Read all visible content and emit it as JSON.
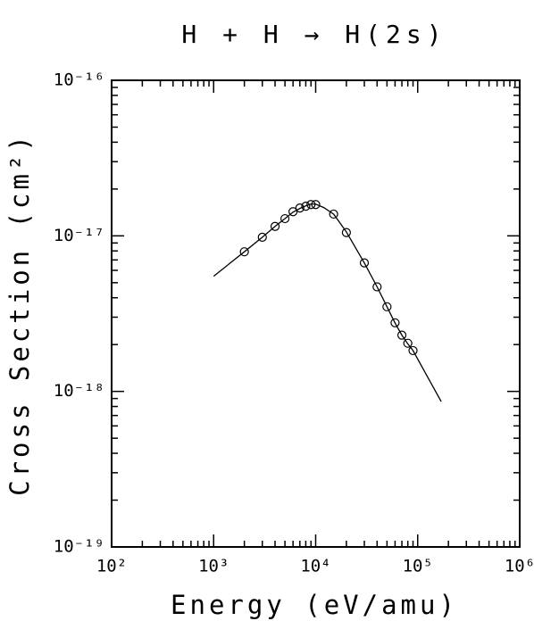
{
  "chart_data": {
    "type": "line",
    "title": "H + H → H(2s)",
    "x_label": "Energy (eV/amu)",
    "y_label": "Cross Section (cm²)",
    "log_x": true,
    "log_y": true,
    "xlim": [
      100,
      1000000
    ],
    "ylim": [
      1e-19,
      1e-16
    ],
    "xticks": [
      {
        "value": 100,
        "label": "10²"
      },
      {
        "value": 1000,
        "label": "10³"
      },
      {
        "value": 10000,
        "label": "10⁴"
      },
      {
        "value": 100000,
        "label": "10⁵"
      },
      {
        "value": 1000000,
        "label": "10⁶"
      }
    ],
    "yticks": [
      {
        "value": 1e-19,
        "label": "10⁻¹⁹"
      },
      {
        "value": 1e-18,
        "label": "10⁻¹⁸"
      },
      {
        "value": 1e-17,
        "label": "10⁻¹⁷"
      },
      {
        "value": 1e-16,
        "label": "10⁻¹⁶"
      }
    ],
    "series": [
      {
        "style": "line",
        "color": "#000000",
        "x": [
          1000,
          1500,
          2000,
          3000,
          4000,
          5000,
          6000,
          7000,
          8000,
          9000,
          10000,
          12000,
          15000,
          20000,
          30000,
          40000,
          50000,
          60000,
          70000,
          80000,
          90000,
          120000,
          170000
        ],
        "values": [
          5.5e-18,
          6.8e-18,
          7.9e-18,
          9.8e-18,
          1.15e-17,
          1.29e-17,
          1.42e-17,
          1.5e-17,
          1.56e-17,
          1.6e-17,
          1.6e-17,
          1.52e-17,
          1.38e-17,
          1.06e-17,
          6.7e-18,
          4.7e-18,
          3.5e-18,
          2.75e-18,
          2.3e-18,
          2.02e-18,
          1.83e-18,
          1.3e-18,
          8.6e-19
        ]
      },
      {
        "style": "markers",
        "color": "#000000",
        "x": [
          2000,
          3000,
          4000,
          5000,
          6000,
          7000,
          8000,
          9000,
          10000,
          15000,
          20000,
          30000,
          40000,
          50000,
          60000,
          70000,
          80000,
          90000
        ],
        "values": [
          7.9e-18,
          9.8e-18,
          1.15e-17,
          1.29e-17,
          1.43e-17,
          1.51e-17,
          1.55e-17,
          1.59e-17,
          1.59e-17,
          1.38e-17,
          1.05e-17,
          6.7e-18,
          4.7e-18,
          3.5e-18,
          2.76e-18,
          2.3e-18,
          2.04e-18,
          1.83e-18
        ]
      }
    ]
  }
}
